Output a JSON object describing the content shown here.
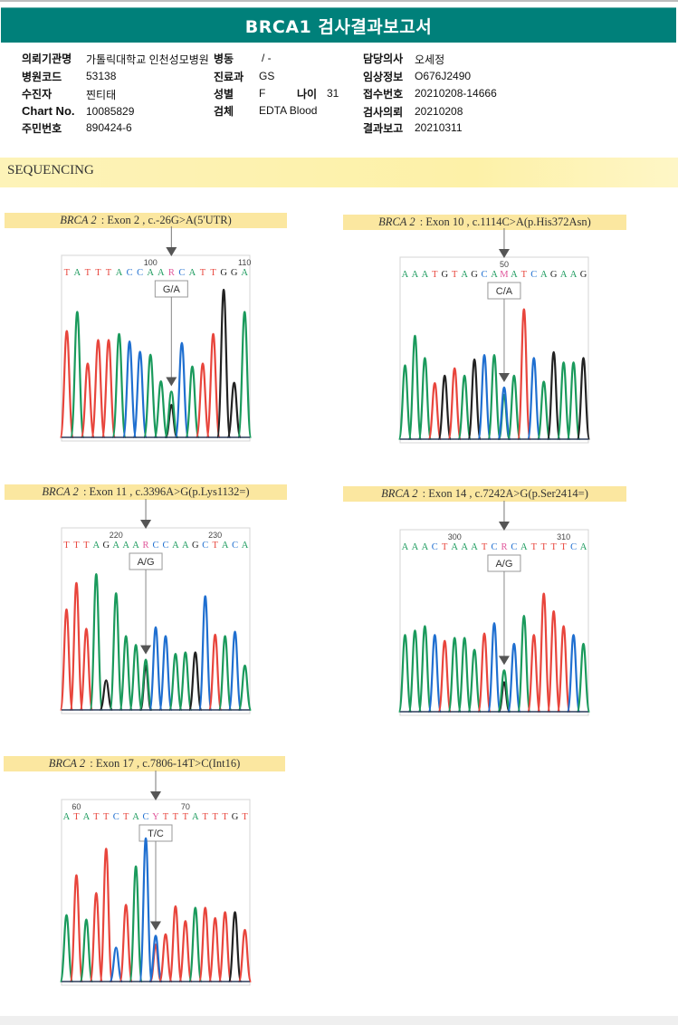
{
  "report": {
    "title": "BRCA1 검사결과보고서",
    "section_title": "SEQUENCING"
  },
  "patient_info": {
    "left": [
      {
        "label": "의뢰기관명",
        "value": "가톨릭대학교 인천성모병원"
      },
      {
        "label": "병원코드",
        "value": "53138"
      },
      {
        "label": "수진자",
        "value": "찐티태"
      },
      {
        "label": "Chart No.",
        "value": "10085829"
      },
      {
        "label": "주민번호",
        "value": "890424-6"
      }
    ],
    "middle": [
      {
        "label": "병동",
        "value": "/ -"
      },
      {
        "label": "진료과",
        "value": "GS"
      },
      {
        "label": "성별",
        "value": "F"
      },
      {
        "label": "검체",
        "value": "EDTA Blood"
      }
    ],
    "age": {
      "label": "나이",
      "value": "31"
    },
    "right": [
      {
        "label": "담당의사",
        "value": "오세정"
      },
      {
        "label": "임상정보",
        "value": "O676J2490"
      },
      {
        "label": "접수번호",
        "value": "20210208-14666"
      },
      {
        "label": "검사의뢰",
        "value": "20210208"
      },
      {
        "label": "결과보고",
        "value": "20210311"
      }
    ]
  },
  "base_colors": {
    "A": "#1a9a5c",
    "C": "#1f6fd0",
    "G": "#222222",
    "T": "#e8453c",
    "R": "#e0559a",
    "M": "#e0559a",
    "Y": "#e0559a"
  },
  "chart_data": [
    {
      "type": "line",
      "title_gene": "BRCA 2",
      "title": "Exon 2 , c.-26G>A(5'UTR)",
      "call_label": "G/A",
      "positions": [
        {
          "label": "100",
          "index": 8
        },
        {
          "label": "110",
          "index": 17
        }
      ],
      "variant_index": 10,
      "sequence": [
        "T",
        "A",
        "T",
        "T",
        "T",
        "A",
        "C",
        "C",
        "A",
        "A",
        "R",
        "C",
        "A",
        "T",
        "T",
        "G",
        "G",
        "A"
      ],
      "peaks": [
        {
          "base": "T",
          "height": 0.72
        },
        {
          "base": "A",
          "height": 0.85
        },
        {
          "base": "T",
          "height": 0.5
        },
        {
          "base": "T",
          "height": 0.66
        },
        {
          "base": "T",
          "height": 0.66
        },
        {
          "base": "A",
          "height": 0.7
        },
        {
          "base": "C",
          "height": 0.65
        },
        {
          "base": "C",
          "height": 0.58
        },
        {
          "base": "A",
          "height": 0.56
        },
        {
          "base": "A",
          "height": 0.38
        },
        {
          "base": "A",
          "height": 0.31,
          "secondary": {
            "base": "G",
            "height": 0.22
          }
        },
        {
          "base": "C",
          "height": 0.64
        },
        {
          "base": "A",
          "height": 0.48
        },
        {
          "base": "T",
          "height": 0.5
        },
        {
          "base": "T",
          "height": 0.7
        },
        {
          "base": "G",
          "height": 1.0
        },
        {
          "base": "G",
          "height": 0.37
        },
        {
          "base": "A",
          "height": 0.85
        }
      ]
    },
    {
      "type": "line",
      "title_gene": "BRCA 2",
      "title": "Exon 10 , c.1114C>A(p.His372Asn)",
      "call_label": "C/A",
      "positions": [
        {
          "label": "50",
          "index": 10
        }
      ],
      "variant_index": 10,
      "sequence": [
        "A",
        "A",
        "A",
        "T",
        "G",
        "T",
        "A",
        "G",
        "C",
        "A",
        "M",
        "A",
        "T",
        "C",
        "A",
        "G",
        "A",
        "A",
        "G"
      ],
      "peaks": [
        {
          "base": "A",
          "height": 0.5
        },
        {
          "base": "A",
          "height": 0.7
        },
        {
          "base": "A",
          "height": 0.55
        },
        {
          "base": "T",
          "height": 0.38
        },
        {
          "base": "G",
          "height": 0.43
        },
        {
          "base": "T",
          "height": 0.48
        },
        {
          "base": "A",
          "height": 0.43
        },
        {
          "base": "G",
          "height": 0.54
        },
        {
          "base": "C",
          "height": 0.57
        },
        {
          "base": "A",
          "height": 0.57
        },
        {
          "base": "C",
          "height": 0.35,
          "secondary": {
            "base": "A",
            "height": 0.3
          }
        },
        {
          "base": "A",
          "height": 0.43
        },
        {
          "base": "T",
          "height": 0.88
        },
        {
          "base": "C",
          "height": 0.55
        },
        {
          "base": "A",
          "height": 0.39
        },
        {
          "base": "G",
          "height": 0.59
        },
        {
          "base": "A",
          "height": 0.52
        },
        {
          "base": "A",
          "height": 0.52
        },
        {
          "base": "G",
          "height": 0.55
        }
      ]
    },
    {
      "type": "line",
      "title_gene": "BRCA 2",
      "title": "Exon 11 , c.3396A>G(p.Lys1132=)",
      "call_label": "A/G",
      "positions": [
        {
          "label": "220",
          "index": 5
        },
        {
          "label": "230",
          "index": 15
        }
      ],
      "variant_index": 8,
      "sequence": [
        "T",
        "T",
        "T",
        "A",
        "G",
        "A",
        "A",
        "A",
        "R",
        "C",
        "C",
        "A",
        "A",
        "G",
        "C",
        "T",
        "A",
        "C",
        "A"
      ],
      "peaks": [
        {
          "base": "T",
          "height": 0.68
        },
        {
          "base": "T",
          "height": 0.86
        },
        {
          "base": "T",
          "height": 0.55
        },
        {
          "base": "A",
          "height": 0.92
        },
        {
          "base": "G",
          "height": 0.2
        },
        {
          "base": "A",
          "height": 0.79
        },
        {
          "base": "A",
          "height": 0.5
        },
        {
          "base": "A",
          "height": 0.44
        },
        {
          "base": "A",
          "height": 0.34,
          "secondary": {
            "base": "G",
            "height": 0.3
          }
        },
        {
          "base": "C",
          "height": 0.56
        },
        {
          "base": "C",
          "height": 0.5
        },
        {
          "base": "A",
          "height": 0.38
        },
        {
          "base": "A",
          "height": 0.39
        },
        {
          "base": "G",
          "height": 0.39
        },
        {
          "base": "C",
          "height": 0.77
        },
        {
          "base": "T",
          "height": 0.51
        },
        {
          "base": "A",
          "height": 0.5
        },
        {
          "base": "C",
          "height": 0.53
        },
        {
          "base": "A",
          "height": 0.3
        }
      ]
    },
    {
      "type": "line",
      "title_gene": "BRCA 2",
      "title": "Exon 14 , c.7242A>G(p.Ser2414=)",
      "call_label": "A/G",
      "positions": [
        {
          "label": "300",
          "index": 5
        },
        {
          "label": "310",
          "index": 16
        }
      ],
      "variant_index": 10,
      "sequence": [
        "A",
        "A",
        "A",
        "C",
        "T",
        "A",
        "A",
        "A",
        "T",
        "C",
        "R",
        "C",
        "A",
        "T",
        "T",
        "T",
        "T",
        "C",
        "A"
      ],
      "peaks": [
        {
          "base": "A",
          "height": 0.52
        },
        {
          "base": "A",
          "height": 0.55
        },
        {
          "base": "A",
          "height": 0.58
        },
        {
          "base": "C",
          "height": 0.52
        },
        {
          "base": "T",
          "height": 0.48
        },
        {
          "base": "A",
          "height": 0.5
        },
        {
          "base": "A",
          "height": 0.5
        },
        {
          "base": "A",
          "height": 0.42
        },
        {
          "base": "T",
          "height": 0.53
        },
        {
          "base": "C",
          "height": 0.6
        },
        {
          "base": "A",
          "height": 0.28,
          "secondary": {
            "base": "G",
            "height": 0.2
          }
        },
        {
          "base": "C",
          "height": 0.46
        },
        {
          "base": "A",
          "height": 0.65
        },
        {
          "base": "T",
          "height": 0.52
        },
        {
          "base": "T",
          "height": 0.8
        },
        {
          "base": "T",
          "height": 0.68
        },
        {
          "base": "T",
          "height": 0.58
        },
        {
          "base": "C",
          "height": 0.52
        },
        {
          "base": "A",
          "height": 0.46
        }
      ]
    },
    {
      "type": "line",
      "title_gene": "BRCA 2",
      "title": "Exon 17 , c.7806-14T>C(Int16)",
      "call_label": "T/C",
      "positions": [
        {
          "label": "60",
          "index": 1
        },
        {
          "label": "70",
          "index": 12
        }
      ],
      "variant_index": 9,
      "sequence": [
        "A",
        "T",
        "A",
        "T",
        "T",
        "C",
        "T",
        "A",
        "C",
        "Y",
        "T",
        "T",
        "T",
        "A",
        "T",
        "T",
        "T",
        "G",
        "T"
      ],
      "peaks": [
        {
          "base": "A",
          "height": 0.45
        },
        {
          "base": "T",
          "height": 0.72
        },
        {
          "base": "A",
          "height": 0.42
        },
        {
          "base": "T",
          "height": 0.6
        },
        {
          "base": "T",
          "height": 0.9
        },
        {
          "base": "C",
          "height": 0.23
        },
        {
          "base": "T",
          "height": 0.52
        },
        {
          "base": "A",
          "height": 0.78
        },
        {
          "base": "C",
          "height": 0.97
        },
        {
          "base": "C",
          "height": 0.31,
          "secondary": {
            "base": "T",
            "height": 0.25
          }
        },
        {
          "base": "T",
          "height": 0.32
        },
        {
          "base": "T",
          "height": 0.51
        },
        {
          "base": "T",
          "height": 0.41
        },
        {
          "base": "A",
          "height": 0.5
        },
        {
          "base": "T",
          "height": 0.5
        },
        {
          "base": "T",
          "height": 0.43
        },
        {
          "base": "T",
          "height": 0.47
        },
        {
          "base": "G",
          "height": 0.47
        },
        {
          "base": "T",
          "height": 0.35
        }
      ]
    }
  ]
}
